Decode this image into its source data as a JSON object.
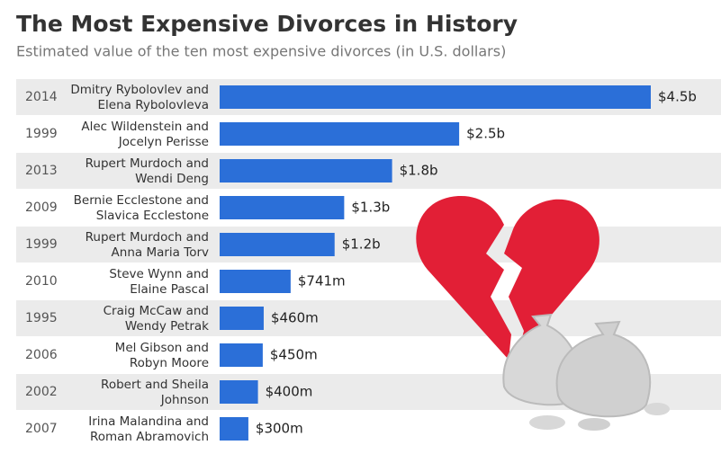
{
  "chart_data": {
    "type": "bar",
    "orientation": "horizontal",
    "title": "The Most Expensive Divorces in History",
    "subtitle": "Estimated value of the ten most expensive divorces (in U.S. dollars)",
    "years": [
      "2014",
      "1999",
      "2013",
      "2009",
      "1999",
      "2010",
      "1995",
      "2006",
      "2002",
      "2007"
    ],
    "categories": [
      [
        "Dmitry Rybolovlev and",
        "Elena Rybolovleva"
      ],
      [
        "Alec Wildenstein and",
        "Jocelyn Perisse"
      ],
      [
        "Rupert Murdoch and",
        "Wendi Deng"
      ],
      [
        "Bernie Ecclestone and",
        "Slavica Ecclestone"
      ],
      [
        "Rupert Murdoch and",
        "Anna Maria Torv"
      ],
      [
        "Steve Wynn and",
        "Elaine Pascal"
      ],
      [
        "Craig McCaw and",
        "Wendy Petrak"
      ],
      [
        "Mel Gibson and",
        "Robyn Moore"
      ],
      [
        "Robert and Sheila",
        "Johnson"
      ],
      [
        "Irina Malandina and",
        "Roman Abramovich"
      ]
    ],
    "values": [
      4500000000,
      2500000000,
      1800000000,
      1300000000,
      1200000000,
      741000000,
      460000000,
      450000000,
      400000000,
      300000000
    ],
    "value_labels": [
      "$4.5b",
      "$2.5b",
      "$1.8b",
      "$1.3b",
      "$1.2b",
      "$741m",
      "$460m",
      "$450m",
      "$400m",
      "$300m"
    ],
    "color": "#2b6fd8"
  }
}
